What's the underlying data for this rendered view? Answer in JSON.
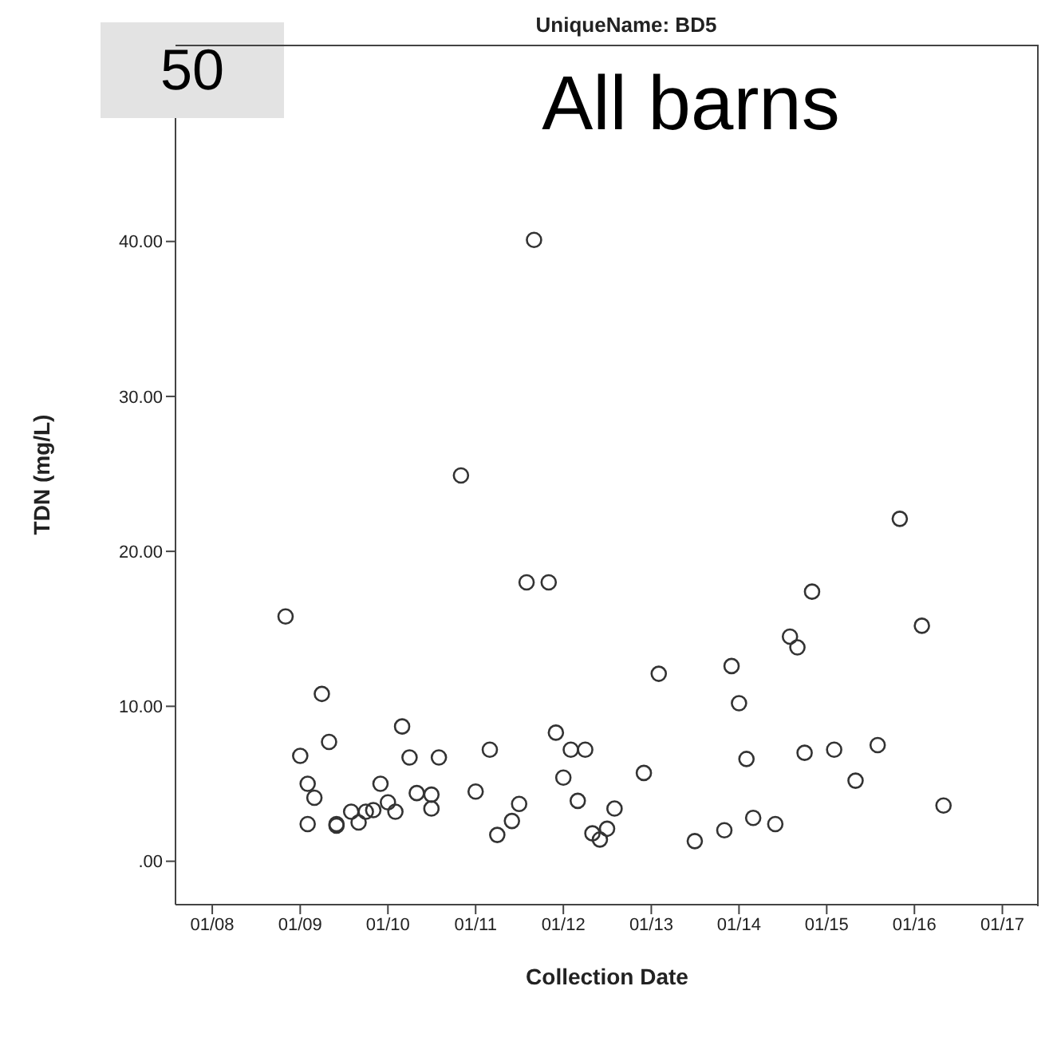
{
  "chart_data": {
    "type": "scatter",
    "title": "UniqueName: BD5",
    "xlabel": "Collection Date",
    "ylabel": "TDN (mg/L)",
    "annotations": [
      "50",
      "All barns"
    ],
    "x": [
      "2008-11",
      "2009-01",
      "2009-02",
      "2009-02",
      "2009-03",
      "2009-04",
      "2009-05",
      "2009-06",
      "2009-06",
      "2009-08",
      "2009-09",
      "2009-10",
      "2009-11",
      "2009-12",
      "2010-01",
      "2010-02",
      "2010-03",
      "2010-04",
      "2010-05",
      "2010-07",
      "2010-07",
      "2010-08",
      "2010-11",
      "2011-01",
      "2011-03",
      "2011-04",
      "2011-06",
      "2011-07",
      "2011-08",
      "2011-09",
      "2011-11",
      "2011-12",
      "2012-01",
      "2012-02",
      "2012-03",
      "2012-04",
      "2012-05",
      "2012-06",
      "2012-07",
      "2012-08",
      "2012-12",
      "2013-02",
      "2013-07",
      "2013-11",
      "2013-12",
      "2014-01",
      "2014-02",
      "2014-03",
      "2014-06",
      "2014-08",
      "2014-09",
      "2014-10",
      "2014-11",
      "2015-02",
      "2015-05",
      "2015-08",
      "2015-11",
      "2016-02",
      "2016-05"
    ],
    "values": [
      15.8,
      6.8,
      5.0,
      2.4,
      4.1,
      10.8,
      7.7,
      2.3,
      2.4,
      3.2,
      2.5,
      3.2,
      3.3,
      5.0,
      3.8,
      3.2,
      8.7,
      6.7,
      4.4,
      3.4,
      4.3,
      6.7,
      24.9,
      4.5,
      7.2,
      1.7,
      2.6,
      3.7,
      18.0,
      40.1,
      18.0,
      8.3,
      5.4,
      7.2,
      3.9,
      7.2,
      1.8,
      1.4,
      2.1,
      3.4,
      5.7,
      12.1,
      1.3,
      2.0,
      12.6,
      10.2,
      6.6,
      2.8,
      2.4,
      14.5,
      13.8,
      7.0,
      17.4,
      7.2,
      5.2,
      7.5,
      22.1,
      15.2,
      3.6
    ],
    "color": "#333333",
    "marker": "circle",
    "grid": false,
    "legend": false,
    "xlim": [
      "2007-08",
      "2017-06"
    ],
    "xticks": [
      {
        "value": "2008-01",
        "label": "01/08"
      },
      {
        "value": "2009-01",
        "label": "01/09"
      },
      {
        "value": "2010-01",
        "label": "01/10"
      },
      {
        "value": "2011-01",
        "label": "01/11"
      },
      {
        "value": "2012-01",
        "label": "01/12"
      },
      {
        "value": "2013-01",
        "label": "01/13"
      },
      {
        "value": "2014-01",
        "label": "01/14"
      },
      {
        "value": "2015-01",
        "label": "01/15"
      },
      {
        "value": "2016-01",
        "label": "01/16"
      },
      {
        "value": "2017-01",
        "label": "01/17"
      }
    ],
    "ylim": [
      -2.8,
      52.7
    ],
    "yticks": [
      {
        "value": 0,
        "label": ".00"
      },
      {
        "value": 10,
        "label": "10.00"
      },
      {
        "value": 20,
        "label": "20.00"
      },
      {
        "value": 30,
        "label": "30.00"
      },
      {
        "value": 40,
        "label": "40.00"
      }
    ]
  }
}
